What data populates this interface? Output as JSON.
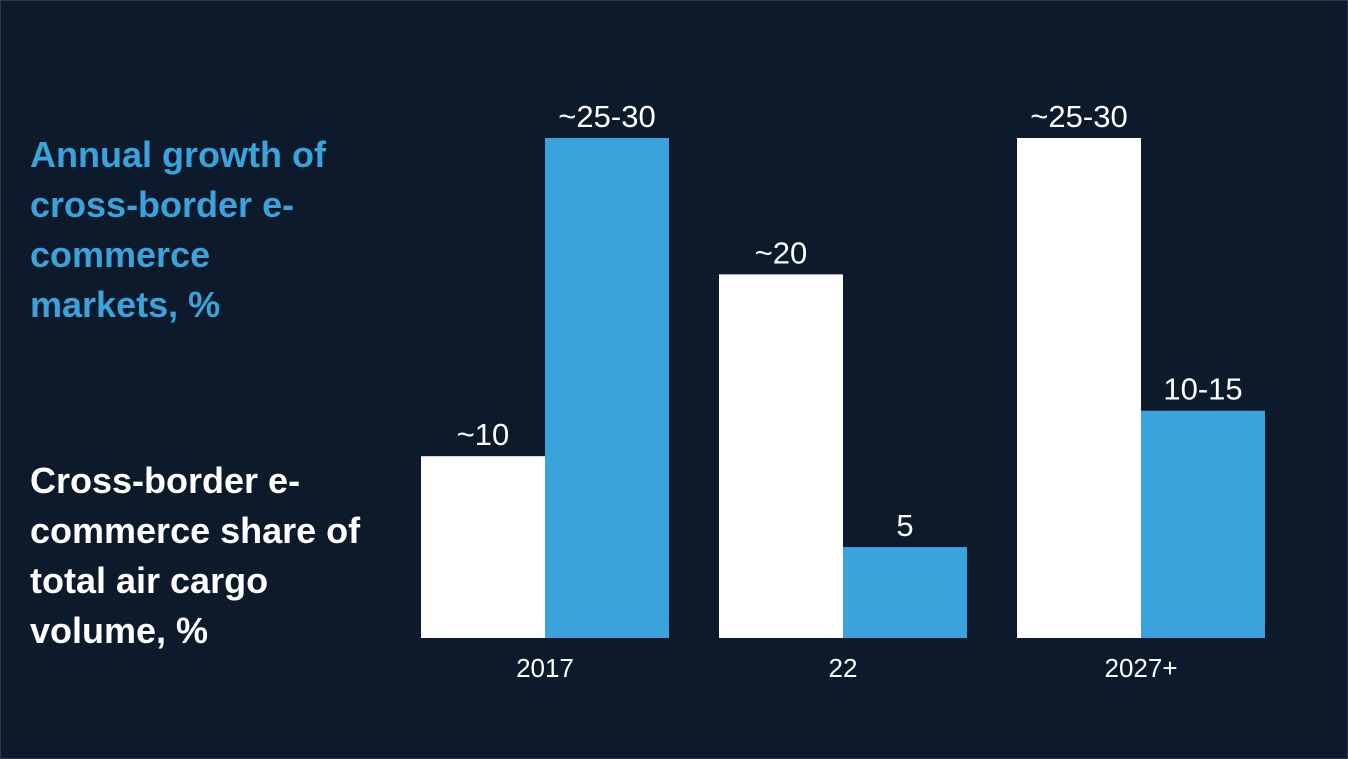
{
  "chart_data": {
    "type": "bar",
    "categories": [
      "2017",
      "22",
      "2027+"
    ],
    "series": [
      {
        "name": "Cross-border e-commerce share of total air cargo volume, %",
        "color": "#ffffff",
        "values": [
          10,
          20,
          27.5
        ],
        "value_labels": [
          "~10",
          "~20",
          "~25-30"
        ]
      },
      {
        "name": "Annual growth of cross-border e-commerce markets, %",
        "color": "#3ba3dc",
        "values": [
          27.5,
          5,
          12.5
        ],
        "value_labels": [
          "~25-30",
          "5",
          "10-15"
        ]
      }
    ],
    "ylim": [
      0,
      27.5
    ]
  }
}
